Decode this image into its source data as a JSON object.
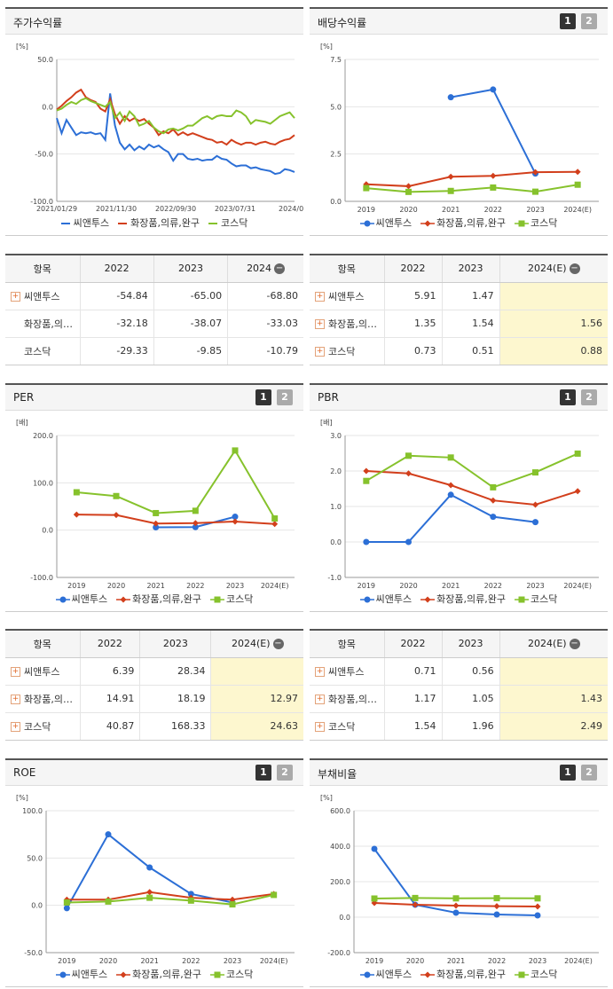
{
  "colors": {
    "ssnt": "#2c6fd6",
    "cosm": "#d23f1c",
    "kosdaq": "#86c22c"
  },
  "chart_data": [
    {
      "id": "stock",
      "type": "line",
      "title": "주가수익률",
      "unit": "[%]",
      "ylim": [
        -100,
        50
      ],
      "yticks": [
        "50.0",
        "0.0",
        "-50.0",
        "-100.0"
      ],
      "x_tick_labels": [
        "2021/01/29",
        "2021/11/30",
        "2022/09/30",
        "2023/07/31",
        "2024/05/"
      ],
      "series": [
        {
          "name": "씨앤투스",
          "values": [
            -12,
            -28,
            -14,
            -22,
            -30,
            -27,
            -28,
            -27,
            -29,
            -28,
            -35,
            14,
            -20,
            -38,
            -45,
            -40,
            -46,
            -42,
            -45,
            -40,
            -43,
            -41,
            -45,
            -48,
            -57,
            -50,
            -50,
            -55,
            -56,
            -55,
            -57,
            -56,
            -56,
            -52,
            -55,
            -56,
            -60,
            -63,
            -62,
            -62,
            -65,
            -64,
            -66,
            -67,
            -68,
            -71,
            -70,
            -66,
            -67,
            -69
          ]
        },
        {
          "name": "화장품,의류,완구",
          "values": [
            -3,
            1,
            6,
            10,
            15,
            18,
            10,
            7,
            5,
            -2,
            -5,
            8,
            -8,
            -18,
            -10,
            -15,
            -12,
            -15,
            -13,
            -18,
            -22,
            -30,
            -26,
            -28,
            -24,
            -30,
            -27,
            -30,
            -28,
            -30,
            -32,
            -34,
            -35,
            -38,
            -37,
            -40,
            -35,
            -38,
            -40,
            -38,
            -38,
            -40,
            -38,
            -37,
            -39,
            -40,
            -37,
            -35,
            -34,
            -30
          ]
        },
        {
          "name": "코스닥",
          "values": [
            -4,
            -2,
            2,
            5,
            3,
            7,
            9,
            6,
            4,
            2,
            0,
            5,
            -12,
            -6,
            -15,
            -5,
            -10,
            -20,
            -18,
            -15,
            -22,
            -26,
            -28,
            -24,
            -23,
            -25,
            -23,
            -20,
            -20,
            -16,
            -12,
            -10,
            -13,
            -10,
            -9,
            -10,
            -10,
            -4,
            -6,
            -10,
            -18,
            -14,
            -15,
            -16,
            -18,
            -14,
            -10,
            -8,
            -6,
            -12
          ]
        }
      ]
    },
    {
      "id": "dividend",
      "type": "line",
      "title": "배당수익률",
      "unit": "[%]",
      "ylim": [
        0,
        7.5
      ],
      "yticks": [
        "7.5",
        "5.0",
        "2.5",
        "0.0"
      ],
      "categories": [
        "2019",
        "2020",
        "2021",
        "2022",
        "2023",
        "2024(E)"
      ],
      "series": [
        {
          "name": "씨앤투스",
          "values": [
            null,
            null,
            5.5,
            5.91,
            1.47,
            null
          ]
        },
        {
          "name": "화장품,의류,완구",
          "values": [
            0.9,
            0.8,
            1.3,
            1.35,
            1.54,
            1.56
          ]
        },
        {
          "name": "코스닥",
          "values": [
            0.7,
            0.5,
            0.55,
            0.73,
            0.51,
            0.88
          ]
        }
      ]
    },
    {
      "id": "per",
      "type": "line",
      "title": "PER",
      "unit": "[배]",
      "ylim": [
        -100,
        200
      ],
      "yticks": [
        "200.0",
        "100.0",
        "0.0",
        "-100.0"
      ],
      "categories": [
        "2019",
        "2020",
        "2021",
        "2022",
        "2023",
        "2024(E)"
      ],
      "series": [
        {
          "name": "씨앤투스",
          "values": [
            null,
            null,
            6,
            6.39,
            28.34,
            null
          ]
        },
        {
          "name": "화장품,의류,완구",
          "values": [
            33,
            32,
            14,
            14.91,
            18.19,
            12.97
          ]
        },
        {
          "name": "코스닥",
          "values": [
            80,
            72,
            36,
            40.87,
            168.33,
            24.63
          ]
        }
      ]
    },
    {
      "id": "pbr",
      "type": "line",
      "title": "PBR",
      "unit": "[배]",
      "ylim": [
        -1,
        3
      ],
      "yticks": [
        "3.0",
        "2.0",
        "1.0",
        "0.0",
        "-1.0"
      ],
      "categories": [
        "2019",
        "2020",
        "2021",
        "2022",
        "2023",
        "2024(E)"
      ],
      "series": [
        {
          "name": "씨앤투스",
          "values": [
            0,
            0,
            1.33,
            0.71,
            0.56,
            null
          ]
        },
        {
          "name": "화장품,의류,완구",
          "values": [
            2.0,
            1.93,
            1.6,
            1.17,
            1.05,
            1.43
          ]
        },
        {
          "name": "코스닥",
          "values": [
            1.72,
            2.43,
            2.38,
            1.54,
            1.96,
            2.49
          ]
        }
      ]
    },
    {
      "id": "roe",
      "type": "line",
      "title": "ROE",
      "unit": "[%]",
      "ylim": [
        -50,
        100
      ],
      "yticks": [
        "100.0",
        "50.0",
        "0.0",
        "-50.0"
      ],
      "categories": [
        "2019",
        "2020",
        "2021",
        "2022",
        "2023",
        "2024(E)"
      ],
      "series": [
        {
          "name": "씨앤투스",
          "values": [
            -3,
            75,
            40,
            12,
            3,
            null
          ]
        },
        {
          "name": "화장품,의류,완구",
          "values": [
            6,
            6,
            14,
            8,
            6,
            12
          ]
        },
        {
          "name": "코스닥",
          "values": [
            3,
            4,
            8,
            5,
            1,
            11
          ]
        }
      ]
    },
    {
      "id": "debt",
      "type": "line",
      "title": "부채비율",
      "unit": "[%]",
      "ylim": [
        -200,
        600
      ],
      "yticks": [
        "600.0",
        "400.0",
        "200.0",
        "0.0",
        "-200.0"
      ],
      "categories": [
        "2019",
        "2020",
        "2021",
        "2022",
        "2023",
        "2024(E)"
      ],
      "series": [
        {
          "name": "씨앤투스",
          "values": [
            385,
            70,
            25,
            15,
            10,
            null
          ]
        },
        {
          "name": "화장품,의류,완구",
          "values": [
            80,
            70,
            65,
            62,
            60,
            null
          ]
        },
        {
          "name": "코스닥",
          "values": [
            105,
            108,
            106,
            107,
            106,
            null
          ]
        }
      ]
    }
  ],
  "legend": [
    "씨앤투스",
    "화장품,의류,완구",
    "코스닥"
  ],
  "pager": [
    "1",
    "2"
  ],
  "tables": {
    "stock": {
      "headers": [
        "항목",
        "2022",
        "2023",
        "2024"
      ],
      "rows": [
        {
          "label": "씨앤투스",
          "plus": true,
          "values": [
            "-54.84",
            "-65.00",
            "-68.80"
          ]
        },
        {
          "label": "화장품,의…",
          "plus": false,
          "values": [
            "-32.18",
            "-38.07",
            "-33.03"
          ]
        },
        {
          "label": "코스닥",
          "plus": false,
          "values": [
            "-29.33",
            "-9.85",
            "-10.79"
          ]
        }
      ]
    },
    "dividend": {
      "headers": [
        "항목",
        "2022",
        "2023",
        "2024(E)"
      ],
      "rows": [
        {
          "label": "씨앤투스",
          "plus": true,
          "values": [
            "5.91",
            "1.47",
            ""
          ]
        },
        {
          "label": "화장품,의…",
          "plus": true,
          "values": [
            "1.35",
            "1.54",
            "1.56"
          ]
        },
        {
          "label": "코스닥",
          "plus": true,
          "values": [
            "0.73",
            "0.51",
            "0.88"
          ]
        }
      ]
    },
    "per": {
      "headers": [
        "항목",
        "2022",
        "2023",
        "2024(E)"
      ],
      "rows": [
        {
          "label": "씨앤투스",
          "plus": true,
          "values": [
            "6.39",
            "28.34",
            ""
          ]
        },
        {
          "label": "화장품,의…",
          "plus": true,
          "values": [
            "14.91",
            "18.19",
            "12.97"
          ]
        },
        {
          "label": "코스닥",
          "plus": true,
          "values": [
            "40.87",
            "168.33",
            "24.63"
          ]
        }
      ]
    },
    "pbr": {
      "headers": [
        "항목",
        "2022",
        "2023",
        "2024(E)"
      ],
      "rows": [
        {
          "label": "씨앤투스",
          "plus": true,
          "values": [
            "0.71",
            "0.56",
            ""
          ]
        },
        {
          "label": "화장품,의…",
          "plus": true,
          "values": [
            "1.17",
            "1.05",
            "1.43"
          ]
        },
        {
          "label": "코스닥",
          "plus": true,
          "values": [
            "1.54",
            "1.96",
            "2.49"
          ]
        }
      ]
    }
  }
}
